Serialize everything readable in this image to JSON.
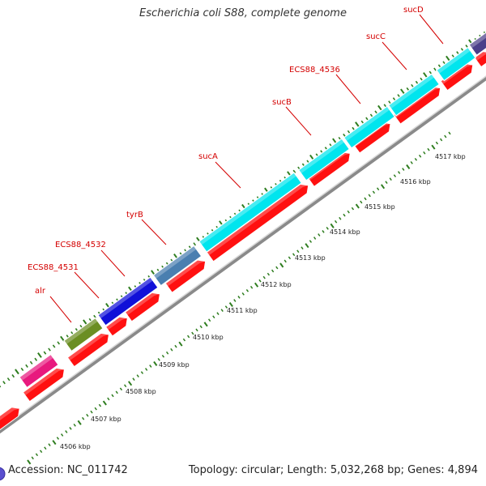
{
  "header": {
    "title": "Escherichia coli S88, complete genome"
  },
  "footer": {
    "accession": "Accession: NC_011742",
    "summary": "Topology: circular; Length: 5,032,268 bp; Genes: 4,894"
  },
  "colors": {
    "backbone": "#999999",
    "tick": "#2e7d1f",
    "cds": "#ff1010",
    "label": "#d40000"
  },
  "genes": [
    {
      "name": "",
      "color": "#e8197e"
    },
    {
      "name": "alr",
      "color": "#6b8e23"
    },
    {
      "name": "ECS88_4531",
      "color": "#1010d8"
    },
    {
      "name": "ECS88_4532",
      "color": "#4a7fb0"
    },
    {
      "name": "tyrB",
      "color": "#00e5ee"
    },
    {
      "name": "sucA",
      "color": "#00e5ee"
    },
    {
      "name": "sucB",
      "color": "#00e5ee"
    },
    {
      "name": "ECS88_4536",
      "color": "#00e5ee"
    },
    {
      "name": "sucC",
      "color": "#00e5ee"
    },
    {
      "name": "sucD",
      "color": "#4b3f8a"
    }
  ],
  "scale": {
    "unit": "kbp",
    "labels": [
      "4506 kbp",
      "4507 kbp",
      "4508 kbp",
      "4509 kbp",
      "4510 kbp",
      "4511 kbp",
      "4512 kbp",
      "4513 kbp",
      "4514 kbp",
      "4515 kbp",
      "4516 kbp",
      "4517 kbp"
    ]
  }
}
